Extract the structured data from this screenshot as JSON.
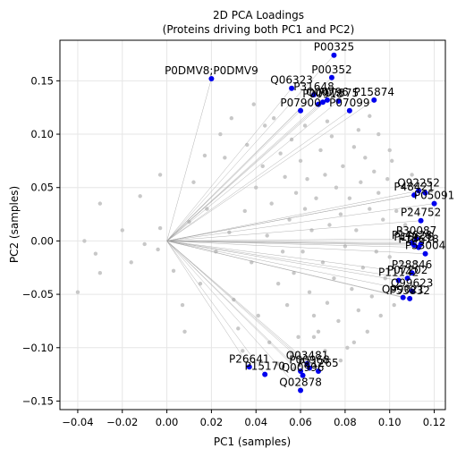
{
  "chart_data": {
    "type": "scatter",
    "title": [
      "2D PCA Loadings",
      "(Proteins driving both PC1 and PC2)"
    ],
    "xlabel": "PC1 (samples)",
    "ylabel": "PC2 (samples)",
    "xlim": [
      -0.048,
      0.125
    ],
    "ylim": [
      -0.158,
      0.188
    ],
    "xticks": [
      -0.04,
      -0.02,
      0.0,
      0.02,
      0.04,
      0.06,
      0.08,
      0.1,
      0.12
    ],
    "xtick_labels": [
      "−0.04",
      "−0.02",
      "0.00",
      "0.02",
      "0.04",
      "0.06",
      "0.08",
      "0.10",
      "0.12"
    ],
    "yticks": [
      -0.15,
      -0.1,
      -0.05,
      0.0,
      0.05,
      0.1,
      0.15
    ],
    "ytick_labels": [
      "−0.15",
      "−0.10",
      "−0.05",
      "0.00",
      "0.05",
      "0.10",
      "0.15"
    ],
    "grid": true,
    "colors": {
      "highlight": "#0000ee",
      "background_points": "#c8c8c8",
      "vector_lines": "#a0a0a0"
    },
    "highlighted": [
      {
        "label": "P00325",
        "x": 0.075,
        "y": 0.174
      },
      {
        "label": "P00352",
        "x": 0.074,
        "y": 0.153
      },
      {
        "label": "P0DMV8;P0DMV9",
        "x": 0.02,
        "y": 0.152
      },
      {
        "label": "Q06323",
        "x": 0.056,
        "y": 0.143
      },
      {
        "label": "P31648",
        "x": 0.066,
        "y": 0.137
      },
      {
        "label": "Q00796",
        "x": 0.072,
        "y": 0.132
      },
      {
        "label": "P07875",
        "x": 0.077,
        "y": 0.131
      },
      {
        "label": "P15874",
        "x": 0.093,
        "y": 0.132
      },
      {
        "label": "P00918",
        "x": 0.07,
        "y": 0.13
      },
      {
        "label": "P07900",
        "x": 0.06,
        "y": 0.122
      },
      {
        "label": "P07099",
        "x": 0.082,
        "y": 0.122
      },
      {
        "label": "",
        "x": 0.068,
        "y": 0.128
      },
      {
        "label": "Q92252",
        "x": 0.113,
        "y": 0.047
      },
      {
        "label": "P48421",
        "x": 0.111,
        "y": 0.043
      },
      {
        "label": "P05091",
        "x": 0.12,
        "y": 0.035
      },
      {
        "label": "",
        "x": 0.116,
        "y": 0.045
      },
      {
        "label": "P24752",
        "x": 0.114,
        "y": 0.019
      },
      {
        "label": "P30087",
        "x": 0.112,
        "y": 0.002
      },
      {
        "label": "P14628",
        "x": 0.11,
        "y": -0.002
      },
      {
        "label": "P15628",
        "x": 0.111,
        "y": -0.004
      },
      {
        "label": "P14618",
        "x": 0.113,
        "y": -0.006
      },
      {
        "label": "",
        "x": 0.114,
        "y": -0.003
      },
      {
        "label": "P53004",
        "x": 0.116,
        "y": -0.012
      },
      {
        "label": "P28846",
        "x": 0.11,
        "y": -0.03
      },
      {
        "label": "P07202",
        "x": 0.108,
        "y": -0.035
      },
      {
        "label": "P11142",
        "x": 0.104,
        "y": -0.037
      },
      {
        "label": "Q99623",
        "x": 0.11,
        "y": -0.047
      },
      {
        "label": "P53832",
        "x": 0.109,
        "y": -0.054
      },
      {
        "label": "Q99021",
        "x": 0.106,
        "y": -0.053
      },
      {
        "label": "P26641",
        "x": 0.037,
        "y": -0.118
      },
      {
        "label": "P15170",
        "x": 0.044,
        "y": -0.125
      },
      {
        "label": "Q03481",
        "x": 0.063,
        "y": -0.115
      },
      {
        "label": "P00968",
        "x": 0.064,
        "y": -0.119
      },
      {
        "label": "P21265",
        "x": 0.068,
        "y": -0.122
      },
      {
        "label": "Q00996",
        "x": 0.061,
        "y": -0.126
      },
      {
        "label": "",
        "x": 0.06,
        "y": -0.122
      },
      {
        "label": "Q02878",
        "x": 0.06,
        "y": -0.14
      }
    ],
    "background": [
      [
        -0.04,
        -0.048
      ],
      [
        -0.037,
        0.0
      ],
      [
        -0.032,
        -0.012
      ],
      [
        -0.03,
        0.035
      ],
      [
        -0.03,
        -0.03
      ],
      [
        -0.016,
        -0.02
      ],
      [
        -0.012,
        0.042
      ],
      [
        -0.01,
        -0.003
      ],
      [
        -0.004,
        -0.008
      ],
      [
        -0.003,
        0.012
      ],
      [
        -0.003,
        0.062
      ],
      [
        0.003,
        -0.028
      ],
      [
        0.007,
        -0.06
      ],
      [
        0.01,
        0.018
      ],
      [
        0.012,
        0.055
      ],
      [
        0.015,
        -0.04
      ],
      [
        0.018,
        0.03
      ],
      [
        0.022,
        -0.01
      ],
      [
        0.024,
        0.1
      ],
      [
        0.026,
        0.078
      ],
      [
        0.028,
        0.008
      ],
      [
        0.03,
        -0.055
      ],
      [
        0.032,
        -0.082
      ],
      [
        0.035,
        0.028
      ],
      [
        0.036,
        0.09
      ],
      [
        0.038,
        -0.02
      ],
      [
        0.04,
        0.05
      ],
      [
        0.041,
        -0.07
      ],
      [
        0.043,
        0.07
      ],
      [
        0.045,
        0.005
      ],
      [
        0.046,
        -0.095
      ],
      [
        0.047,
        0.035
      ],
      [
        0.048,
        0.115
      ],
      [
        0.05,
        -0.04
      ],
      [
        0.051,
        0.082
      ],
      [
        0.052,
        -0.01
      ],
      [
        0.053,
        0.06
      ],
      [
        0.054,
        -0.06
      ],
      [
        0.055,
        0.02
      ],
      [
        0.056,
        0.095
      ],
      [
        0.057,
        -0.03
      ],
      [
        0.058,
        0.045
      ],
      [
        0.059,
        -0.09
      ],
      [
        0.06,
        0.075
      ],
      [
        0.061,
        -0.01
      ],
      [
        0.062,
        0.03
      ],
      [
        0.063,
        0.058
      ],
      [
        0.064,
        -0.048
      ],
      [
        0.065,
        0.01
      ],
      [
        0.066,
        -0.07
      ],
      [
        0.067,
        0.04
      ],
      [
        0.068,
        -0.085
      ],
      [
        0.069,
        0.085
      ],
      [
        0.07,
        -0.02
      ],
      [
        0.071,
        0.062
      ],
      [
        0.072,
        -0.058
      ],
      [
        0.073,
        0.015
      ],
      [
        0.074,
        0.098
      ],
      [
        0.075,
        -0.035
      ],
      [
        0.076,
        0.05
      ],
      [
        0.077,
        -0.075
      ],
      [
        0.078,
        0.025
      ],
      [
        0.079,
        0.07
      ],
      [
        0.08,
        -0.005
      ],
      [
        0.081,
        -0.1
      ],
      [
        0.082,
        0.04
      ],
      [
        0.083,
        -0.045
      ],
      [
        0.084,
        0.088
      ],
      [
        0.085,
        0.01
      ],
      [
        0.086,
        -0.065
      ],
      [
        0.087,
        0.055
      ],
      [
        0.088,
        -0.025
      ],
      [
        0.089,
        0.078
      ],
      [
        0.09,
        -0.085
      ],
      [
        0.091,
        0.03
      ],
      [
        0.092,
        -0.052
      ],
      [
        0.093,
        0.065
      ],
      [
        0.094,
        -0.01
      ],
      [
        0.095,
        0.045
      ],
      [
        0.096,
        -0.07
      ],
      [
        0.097,
        0.02
      ],
      [
        0.098,
        -0.035
      ],
      [
        0.099,
        0.058
      ],
      [
        0.1,
        -0.015
      ],
      [
        0.101,
        0.075
      ],
      [
        0.102,
        -0.06
      ],
      [
        0.103,
        0.028
      ],
      [
        0.104,
        0.008
      ],
      [
        0.105,
        -0.02
      ],
      [
        0.106,
        0.05
      ],
      [
        0.107,
        0.015
      ],
      [
        0.108,
        -0.042
      ],
      [
        0.109,
        0.03
      ],
      [
        0.11,
        0.062
      ],
      [
        0.112,
        -0.02
      ],
      [
        0.05,
        -0.115
      ],
      [
        0.056,
        -0.105
      ],
      [
        0.071,
        -0.103
      ],
      [
        0.078,
        -0.112
      ],
      [
        0.066,
        -0.09
      ],
      [
        0.039,
        0.128
      ],
      [
        0.044,
        0.108
      ],
      [
        0.062,
        0.108
      ],
      [
        0.086,
        0.104
      ],
      [
        0.091,
        0.117
      ],
      [
        0.034,
        -0.103
      ],
      [
        0.029,
        0.115
      ],
      [
        0.072,
        0.112
      ],
      [
        0.057,
        -0.12
      ],
      [
        0.084,
        -0.095
      ],
      [
        0.017,
        0.08
      ],
      [
        0.008,
        -0.085
      ],
      [
        -0.02,
        0.01
      ],
      [
        0.095,
        0.1
      ],
      [
        0.1,
        0.085
      ]
    ]
  }
}
